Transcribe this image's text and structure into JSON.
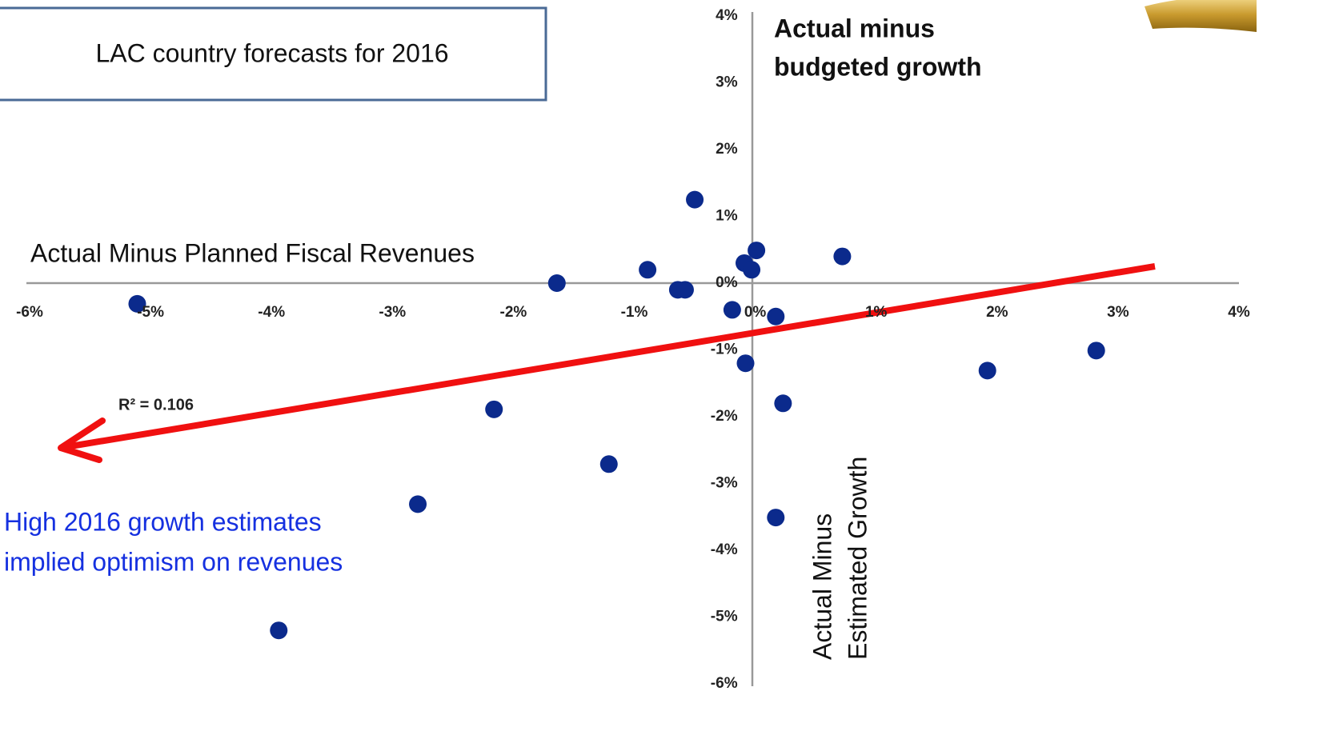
{
  "chart_data": {
    "type": "scatter",
    "title": "LAC country forecasts for 2016",
    "x_label": "Actual Minus Planned Fiscal Revenues",
    "y_label": [
      "Actual minus",
      "budgeted growth"
    ],
    "y_label_2": [
      "Actual Minus",
      "Estimated Growth"
    ],
    "annotation": [
      "High 2016 growth estimates",
      "implied optimism on revenues"
    ],
    "r_squared_label": "R² = 0.106",
    "color": "#0b2a8c",
    "x": [
      -5.11,
      -3.94,
      -2.79,
      -2.16,
      -1.64,
      -1.21,
      -0.89,
      -0.64,
      -0.58,
      -0.5,
      -0.19,
      -0.09,
      -0.03,
      0.01,
      -0.08,
      0.17,
      0.23,
      0.17,
      0.72,
      1.92,
      2.82
    ],
    "values": [
      -0.31,
      -5.2,
      -3.31,
      -1.89,
      0.0,
      -2.71,
      0.2,
      -0.1,
      -0.1,
      1.25,
      -0.4,
      0.3,
      0.2,
      0.49,
      -1.2,
      -0.5,
      -1.8,
      -3.51,
      0.4,
      -1.31,
      -1.01
    ],
    "xlim": [
      -6,
      4
    ],
    "ylim": [
      -6,
      4
    ],
    "xticks": [
      {
        "value": -6,
        "label": "-6%"
      },
      {
        "value": -5,
        "label": "-5%"
      },
      {
        "value": -4,
        "label": "-4%"
      },
      {
        "value": -3,
        "label": "-3%"
      },
      {
        "value": -2,
        "label": "-2%"
      },
      {
        "value": -1,
        "label": "-1%"
      },
      {
        "value": 0,
        "label": "0%"
      },
      {
        "value": 1,
        "label": "1%"
      },
      {
        "value": 2,
        "label": "2%"
      },
      {
        "value": 3,
        "label": "3%"
      },
      {
        "value": 4,
        "label": "4%"
      }
    ],
    "yticks": [
      {
        "value": -6,
        "label": "-6%"
      },
      {
        "value": -5,
        "label": "-5%"
      },
      {
        "value": -4,
        "label": "-4%"
      },
      {
        "value": -3,
        "label": "-3%"
      },
      {
        "value": -2,
        "label": "-2%"
      },
      {
        "value": -1,
        "label": "-1%"
      },
      {
        "value": 0,
        "label": "0%"
      },
      {
        "value": 1,
        "label": "1%"
      },
      {
        "value": 2,
        "label": "2%"
      },
      {
        "value": 3,
        "label": "3%"
      },
      {
        "value": 4,
        "label": "4%"
      }
    ],
    "grid": false
  }
}
